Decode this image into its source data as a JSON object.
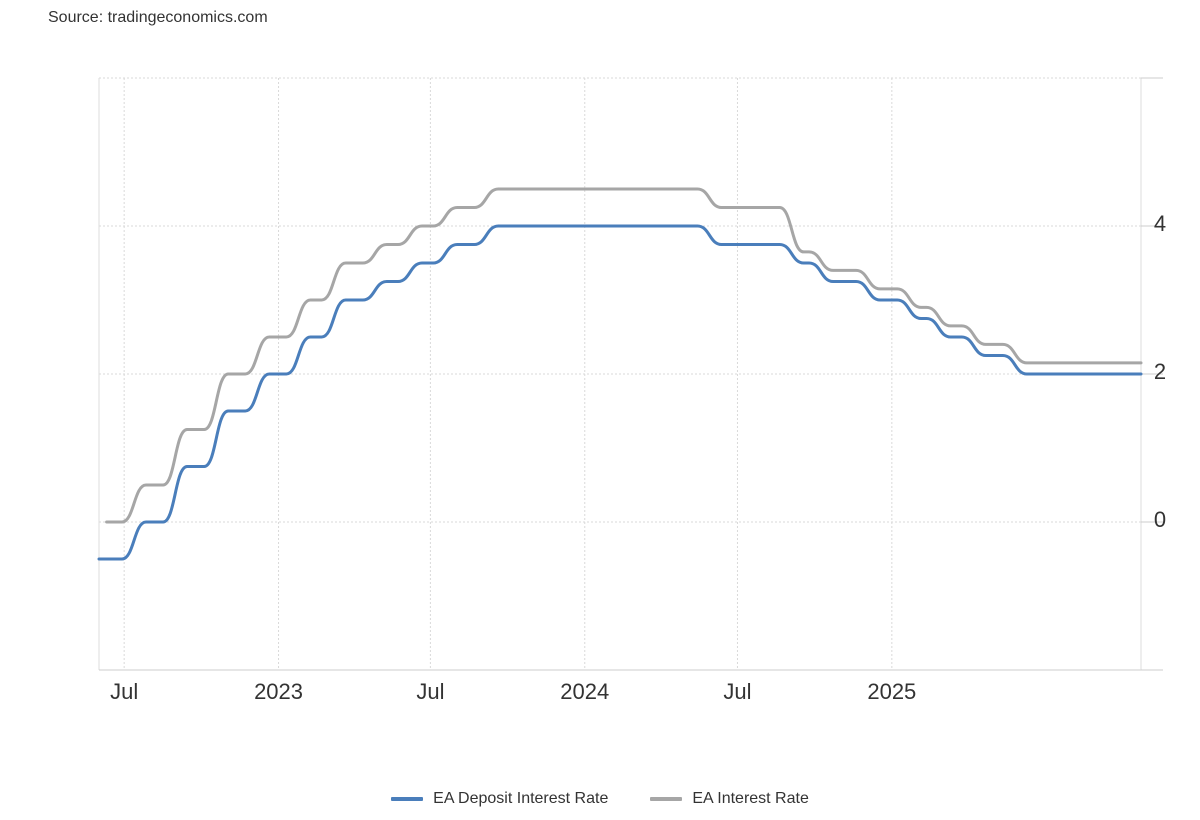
{
  "source": "Source: tradingeconomics.com",
  "chart_data": {
    "type": "line",
    "title": "",
    "xlabel": "",
    "ylabel": "",
    "y_axis_position": "right",
    "ylim": [
      -2,
      6
    ],
    "y_ticks": [
      0,
      2,
      4
    ],
    "xlim": [
      "2022-06-01",
      "2025-10-25"
    ],
    "x_ticks": [
      {
        "date": "2022-07-01",
        "label": "Jul"
      },
      {
        "date": "2023-01-01",
        "label": "2023"
      },
      {
        "date": "2023-07-01",
        "label": "Jul"
      },
      {
        "date": "2024-01-01",
        "label": "2024"
      },
      {
        "date": "2024-07-01",
        "label": "Jul"
      },
      {
        "date": "2025-01-01",
        "label": "2025"
      }
    ],
    "grid": true,
    "legend_position": "bottom-center",
    "series": [
      {
        "name": "EA Deposit Interest Rate",
        "color": "#4a7ebb",
        "points": [
          [
            "2022-06-01",
            -0.5
          ],
          [
            "2022-07-27",
            0
          ],
          [
            "2022-09-14",
            0.75
          ],
          [
            "2022-11-02",
            1.5
          ],
          [
            "2022-12-21",
            2.0
          ],
          [
            "2023-02-08",
            2.5
          ],
          [
            "2023-03-22",
            3.0
          ],
          [
            "2023-05-10",
            3.25
          ],
          [
            "2023-06-21",
            3.5
          ],
          [
            "2023-08-02",
            3.75
          ],
          [
            "2023-09-20",
            4.0
          ],
          [
            "2024-06-12",
            3.75
          ],
          [
            "2024-09-18",
            3.5
          ],
          [
            "2024-10-23",
            3.25
          ],
          [
            "2024-12-18",
            3.0
          ],
          [
            "2025-02-05",
            2.75
          ],
          [
            "2025-03-12",
            2.5
          ],
          [
            "2025-04-23",
            2.25
          ],
          [
            "2025-06-11",
            2.0
          ],
          [
            "2025-10-25",
            2.0
          ]
        ]
      },
      {
        "name": "EA Interest Rate",
        "color": "#a6a6a6",
        "points": [
          [
            "2022-06-10",
            0
          ],
          [
            "2022-07-27",
            0.5
          ],
          [
            "2022-09-14",
            1.25
          ],
          [
            "2022-11-02",
            2.0
          ],
          [
            "2022-12-21",
            2.5
          ],
          [
            "2023-02-08",
            3.0
          ],
          [
            "2023-03-22",
            3.5
          ],
          [
            "2023-05-10",
            3.75
          ],
          [
            "2023-06-21",
            4.0
          ],
          [
            "2023-08-02",
            4.25
          ],
          [
            "2023-09-20",
            4.5
          ],
          [
            "2024-06-12",
            4.25
          ],
          [
            "2024-09-18",
            3.65
          ],
          [
            "2024-10-23",
            3.4
          ],
          [
            "2024-12-18",
            3.15
          ],
          [
            "2025-02-05",
            2.9
          ],
          [
            "2025-03-12",
            2.65
          ],
          [
            "2025-04-23",
            2.4
          ],
          [
            "2025-06-11",
            2.15
          ],
          [
            "2025-10-25",
            2.15
          ]
        ]
      }
    ]
  }
}
